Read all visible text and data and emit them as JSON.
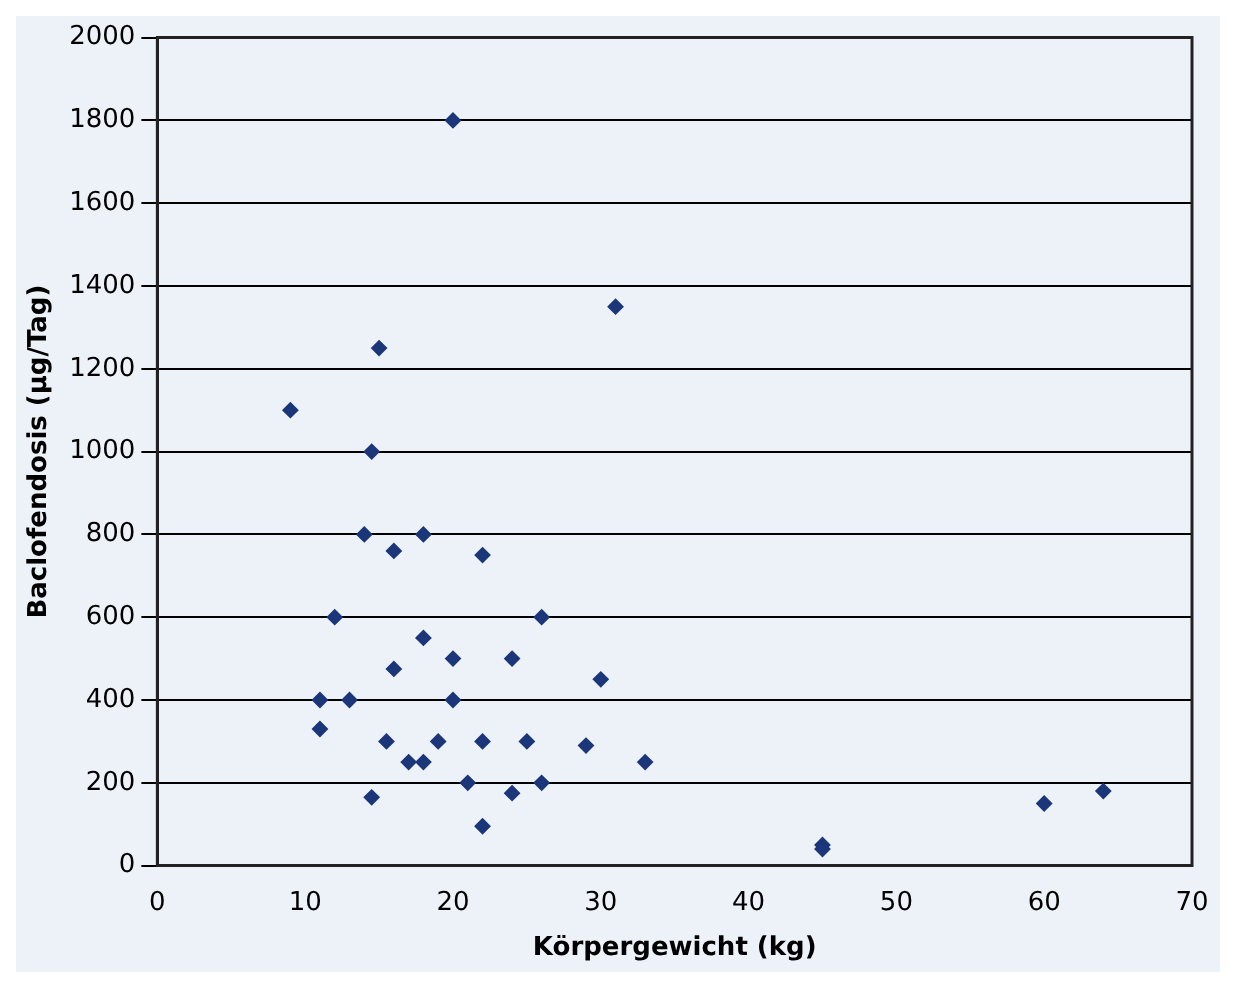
{
  "chart_data": {
    "type": "scatter",
    "xlabel": "Körpergewicht (kg)",
    "ylabel": "Baclofendosis (µg/Tag)",
    "x": [
      20,
      31,
      15,
      9,
      14.5,
      14,
      18,
      16,
      22,
      12,
      26,
      18,
      20,
      24,
      16,
      30,
      11,
      13,
      20,
      11,
      15.5,
      19,
      22,
      25,
      29,
      17,
      18,
      33,
      21,
      26,
      24,
      14.5,
      60,
      64,
      22,
      45,
      45
    ],
    "series": [
      {
        "color": "#1b3679",
        "values": [
          1800,
          1350,
          1250,
          1100,
          1000,
          800,
          800,
          760,
          750,
          600,
          600,
          550,
          500,
          500,
          475,
          450,
          400,
          400,
          400,
          330,
          300,
          300,
          300,
          300,
          290,
          250,
          250,
          250,
          200,
          200,
          175,
          165,
          150,
          180,
          95,
          50,
          40
        ]
      }
    ],
    "xlim": [
      0,
      70
    ],
    "xticks": [
      0,
      10,
      20,
      30,
      40,
      50,
      60,
      70
    ],
    "ylim": [
      0,
      2000
    ],
    "yticks": [
      0,
      200,
      400,
      600,
      800,
      1000,
      1200,
      1400,
      1600,
      1800,
      2000
    ],
    "grid": "y",
    "marker": "diamond",
    "legend": false
  }
}
